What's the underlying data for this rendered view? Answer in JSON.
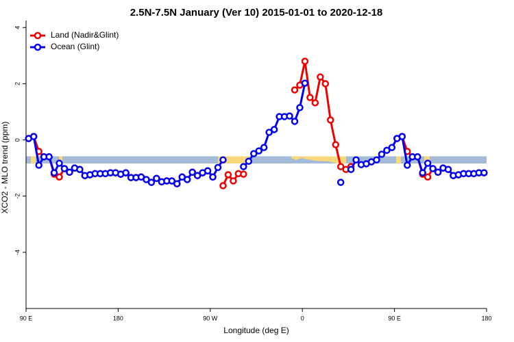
{
  "chart_data": {
    "type": "line",
    "title": "2.5N-7.5N January (Ver 10)   2015-01-01 to 2020-12-18",
    "xlabel": "Longitude (deg E)",
    "ylabel": "XCO2 - MLO trend (ppm)",
    "xlim": [
      90,
      540
    ],
    "xticks": [
      {
        "value": 90,
        "label": "90 E"
      },
      {
        "value": 180,
        "label": "180"
      },
      {
        "value": 270,
        "label": "90 W"
      },
      {
        "value": 360,
        "label": "0"
      },
      {
        "value": 450,
        "label": "90 E"
      },
      {
        "value": 540,
        "label": "180"
      }
    ],
    "ylim": [
      -6,
      4.25
    ],
    "yticks": [
      -4,
      -2,
      0,
      2,
      4
    ],
    "legend": "top-left",
    "x": [
      92.5,
      97.5,
      102.5,
      107.5,
      112.5,
      117.5,
      122.5,
      127.5,
      132.5,
      137.5,
      142.5,
      147.5,
      152.5,
      157.5,
      162.5,
      167.5,
      172.5,
      177.5,
      182.5,
      187.5,
      192.5,
      197.5,
      202.5,
      207.5,
      212.5,
      217.5,
      222.5,
      227.5,
      232.5,
      237.5,
      242.5,
      247.5,
      252.5,
      257.5,
      262.5,
      267.5,
      272.5,
      277.5,
      282.5,
      287.5,
      292.5,
      297.5,
      302.5,
      307.5,
      312.5,
      317.5,
      322.5,
      327.5,
      332.5,
      337.5,
      342.5,
      347.5,
      352.5,
      357.5,
      362.5,
      367.5,
      372.5,
      377.5,
      382.5,
      387.5,
      392.5,
      397.5,
      402.5,
      407.5,
      412.5,
      417.5,
      422.5,
      427.5,
      432.5,
      437.5,
      442.5,
      447.5,
      452.5,
      457.5,
      462.5,
      467.5,
      472.5,
      477.5,
      482.5,
      487.5,
      492.5,
      497.5,
      502.5,
      507.5,
      512.5,
      517.5,
      522.5,
      527.5,
      532.5,
      537.5
    ],
    "series": [
      {
        "name": "Land (Nadir&Glint)",
        "color": "#ee0000",
        "values": [
          0.05,
          0.12,
          -0.41,
          -0.6,
          -0.6,
          -1.22,
          -1.32,
          -1.02,
          -1.15,
          -1.0,
          -1.05,
          -1.27,
          -1.24,
          -1.2,
          -1.2,
          -1.2,
          -1.17,
          -1.17,
          -1.22,
          -1.17,
          -1.34,
          -1.34,
          -1.32,
          -1.41,
          -1.51,
          -1.37,
          -1.49,
          -1.46,
          -1.46,
          -1.56,
          -1.32,
          -1.41,
          -1.15,
          -1.27,
          -1.17,
          -1.1,
          -1.32,
          null,
          -1.63,
          -1.24,
          -1.46,
          -1.2,
          -1.22,
          null,
          null,
          null,
          null,
          null,
          null,
          null,
          null,
          null,
          1.78,
          1.95,
          2.8,
          1.51,
          1.32,
          2.24,
          2.0,
          0.71,
          -0.17,
          -0.95,
          -1.05,
          -0.95,
          null,
          null,
          null,
          null,
          null,
          null,
          null,
          null,
          0.05,
          0.12,
          -0.41,
          -0.6,
          -0.6,
          -1.22,
          -1.32,
          -1.02,
          -1.15,
          -1.0,
          -1.05,
          -1.27,
          -1.24,
          -1.2,
          -1.2,
          -1.2,
          -1.17,
          -1.17
        ]
      },
      {
        "name": "Ocean (Glint)",
        "color": "#0000ee",
        "values": [
          0.05,
          0.12,
          -0.9,
          -0.6,
          -0.6,
          -1.17,
          -0.83,
          -1.02,
          -1.15,
          -1.0,
          -1.05,
          -1.27,
          -1.24,
          -1.2,
          -1.2,
          -1.2,
          -1.17,
          -1.17,
          -1.22,
          -1.17,
          -1.34,
          -1.34,
          -1.32,
          -1.41,
          -1.51,
          -1.37,
          -1.49,
          -1.46,
          -1.46,
          -1.56,
          -1.32,
          -1.41,
          -1.15,
          -1.27,
          -1.17,
          -1.1,
          -1.32,
          -0.98,
          -0.71,
          null,
          null,
          null,
          -0.95,
          -0.76,
          -0.49,
          -0.39,
          -0.27,
          0.27,
          0.37,
          0.83,
          0.83,
          0.85,
          0.66,
          1.15,
          2.02,
          null,
          null,
          null,
          null,
          null,
          null,
          -1.51,
          null,
          -1.05,
          -0.71,
          -0.88,
          -0.85,
          -0.78,
          -0.71,
          -0.51,
          -0.37,
          -0.27,
          0.05,
          0.12,
          -0.9,
          -0.6,
          -0.6,
          -1.17,
          -0.83,
          -1.02,
          -1.15,
          -1.0,
          -1.05,
          -1.27,
          -1.24,
          -1.2,
          -1.2,
          -1.2,
          -1.17,
          -1.17
        ]
      }
    ]
  }
}
